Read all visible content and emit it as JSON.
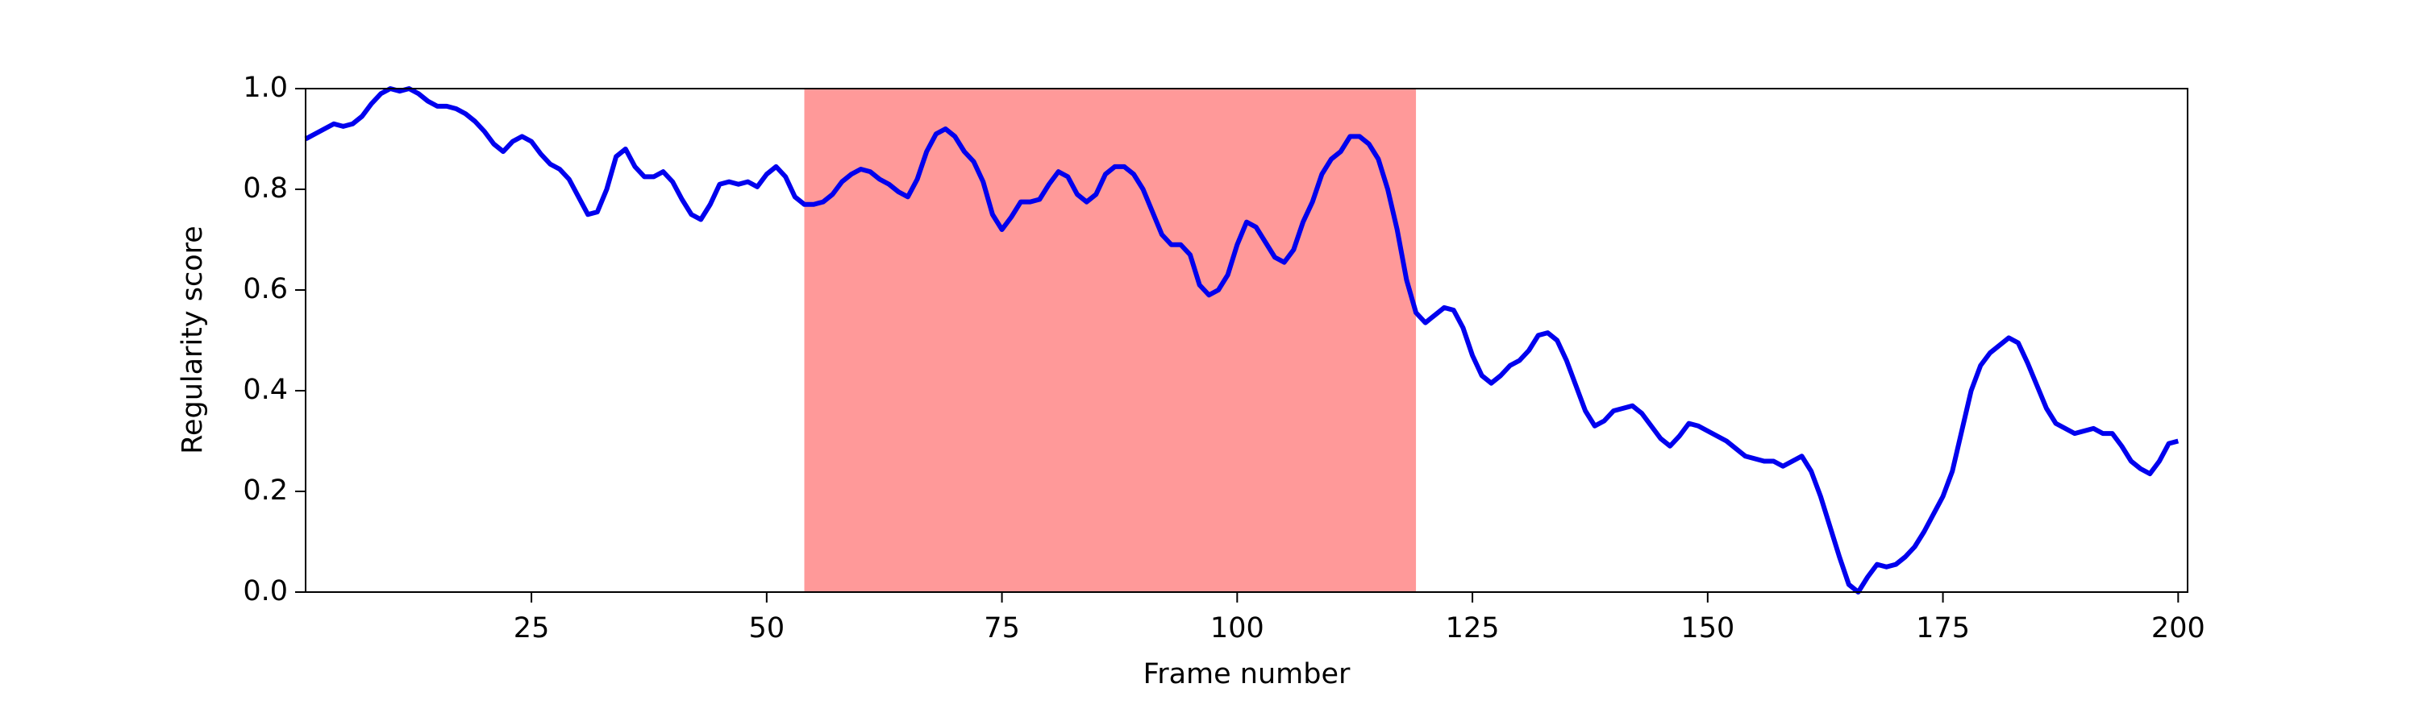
{
  "chart_data": {
    "type": "line",
    "xlabel": "Frame number",
    "ylabel": "Regularity score",
    "xlim": [
      1,
      201
    ],
    "ylim": [
      0,
      1
    ],
    "xticks": [
      25,
      50,
      75,
      100,
      125,
      150,
      175,
      200
    ],
    "yticks": [
      {
        "value": 0,
        "label": "0.0"
      },
      {
        "value": 0.2,
        "label": "0.2"
      },
      {
        "value": 0.4,
        "label": "0.4"
      },
      {
        "value": 0.6,
        "label": "0.6"
      },
      {
        "value": 0.8,
        "label": "0.8"
      },
      {
        "value": 1,
        "label": "1.0"
      }
    ],
    "shaded_span": [
      54,
      119
    ],
    "shaded_color": "#ff9999",
    "grid": false,
    "x": [
      1,
      2,
      3,
      4,
      5,
      6,
      7,
      8,
      9,
      10,
      11,
      12,
      13,
      14,
      15,
      16,
      17,
      18,
      19,
      20,
      21,
      22,
      23,
      24,
      25,
      26,
      27,
      28,
      29,
      30,
      31,
      32,
      33,
      34,
      35,
      36,
      37,
      38,
      39,
      40,
      41,
      42,
      43,
      44,
      45,
      46,
      47,
      48,
      49,
      50,
      51,
      52,
      53,
      54,
      55,
      56,
      57,
      58,
      59,
      60,
      61,
      62,
      63,
      64,
      65,
      66,
      67,
      68,
      69,
      70,
      71,
      72,
      73,
      74,
      75,
      76,
      77,
      78,
      79,
      80,
      81,
      82,
      83,
      84,
      85,
      86,
      87,
      88,
      89,
      90,
      91,
      92,
      93,
      94,
      95,
      96,
      97,
      98,
      99,
      100,
      101,
      102,
      103,
      104,
      105,
      106,
      107,
      108,
      109,
      110,
      111,
      112,
      113,
      114,
      115,
      116,
      117,
      118,
      119,
      120,
      121,
      122,
      123,
      124,
      125,
      126,
      127,
      128,
      129,
      130,
      131,
      132,
      133,
      134,
      135,
      136,
      137,
      138,
      139,
      140,
      141,
      142,
      143,
      144,
      145,
      146,
      147,
      148,
      149,
      150,
      151,
      152,
      153,
      154,
      155,
      156,
      157,
      158,
      159,
      160,
      161,
      162,
      163,
      164,
      165,
      166,
      167,
      168,
      169,
      170,
      171,
      172,
      173,
      174,
      175,
      176,
      177,
      178,
      179,
      180,
      181,
      182,
      183,
      184,
      185,
      186,
      187,
      188,
      189,
      190,
      191,
      192,
      193,
      194,
      195,
      196,
      197,
      198,
      199,
      200
    ],
    "series": [
      {
        "color": "#0000ee",
        "values": [
          0.9,
          0.91,
          0.92,
          0.93,
          0.925,
          0.93,
          0.945,
          0.97,
          0.99,
          1.0,
          0.995,
          1.0,
          0.99,
          0.975,
          0.965,
          0.965,
          0.96,
          0.95,
          0.935,
          0.915,
          0.89,
          0.875,
          0.895,
          0.905,
          0.895,
          0.87,
          0.85,
          0.84,
          0.82,
          0.785,
          0.75,
          0.755,
          0.8,
          0.865,
          0.88,
          0.845,
          0.825,
          0.825,
          0.835,
          0.815,
          0.78,
          0.75,
          0.74,
          0.77,
          0.81,
          0.815,
          0.81,
          0.815,
          0.805,
          0.83,
          0.845,
          0.825,
          0.785,
          0.77,
          0.77,
          0.775,
          0.79,
          0.815,
          0.83,
          0.84,
          0.835,
          0.82,
          0.81,
          0.795,
          0.785,
          0.82,
          0.875,
          0.91,
          0.92,
          0.905,
          0.875,
          0.855,
          0.815,
          0.75,
          0.72,
          0.745,
          0.775,
          0.775,
          0.78,
          0.81,
          0.835,
          0.825,
          0.79,
          0.775,
          0.79,
          0.83,
          0.845,
          0.845,
          0.83,
          0.8,
          0.755,
          0.71,
          0.69,
          0.69,
          0.67,
          0.61,
          0.59,
          0.6,
          0.63,
          0.69,
          0.735,
          0.725,
          0.695,
          0.665,
          0.655,
          0.68,
          0.735,
          0.775,
          0.83,
          0.86,
          0.875,
          0.905,
          0.905,
          0.89,
          0.86,
          0.8,
          0.72,
          0.62,
          0.555,
          0.535,
          0.55,
          0.565,
          0.56,
          0.525,
          0.47,
          0.43,
          0.415,
          0.43,
          0.45,
          0.46,
          0.48,
          0.51,
          0.515,
          0.5,
          0.46,
          0.41,
          0.36,
          0.33,
          0.34,
          0.36,
          0.365,
          0.37,
          0.355,
          0.33,
          0.305,
          0.29,
          0.31,
          0.335,
          0.33,
          0.32,
          0.31,
          0.3,
          0.285,
          0.27,
          0.265,
          0.26,
          0.26,
          0.25,
          0.26,
          0.27,
          0.24,
          0.19,
          0.13,
          0.07,
          0.015,
          0.0,
          0.03,
          0.055,
          0.05,
          0.055,
          0.07,
          0.09,
          0.12,
          0.155,
          0.19,
          0.24,
          0.32,
          0.4,
          0.45,
          0.475,
          0.49,
          0.505,
          0.495,
          0.455,
          0.41,
          0.365,
          0.335,
          0.325,
          0.315,
          0.32,
          0.325,
          0.315,
          0.315,
          0.29,
          0.26,
          0.245,
          0.235,
          0.26,
          0.295,
          0.3
        ]
      }
    ]
  }
}
